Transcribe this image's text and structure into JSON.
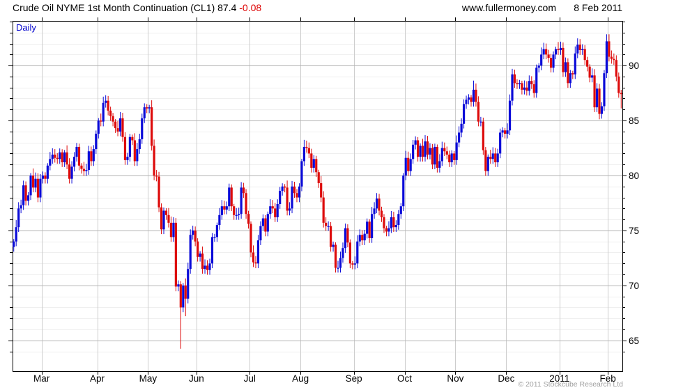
{
  "header": {
    "title": "Crude Oil NYME 1st Month Continuation (CL1) 87.4",
    "change": "-0.08",
    "website": "www.fullermoney.com",
    "date": "8 Feb 2011"
  },
  "plot_label": "Daily",
  "footer": {
    "copyright": "© 2011 Stockcube Research Ltd"
  },
  "chart_data": {
    "type": "candlestick",
    "title": "Crude Oil NYME 1st Month Continuation (CL1)",
    "timeframe": "Daily",
    "last_price": 87.4,
    "change": -0.08,
    "legend_position": "none",
    "grid": "on",
    "y_axis": {
      "side": "right",
      "min": 62.2,
      "max": 94.06,
      "major_ticks": [
        65,
        70,
        75,
        80,
        85,
        90
      ],
      "minor_step": 1
    },
    "x_axis": {
      "tick_labels": [
        "Mar",
        "Apr",
        "May",
        "Jun",
        "Jul",
        "Aug",
        "Sep",
        "Oct",
        "Nov",
        "Dec",
        "2011",
        "Feb"
      ],
      "tick_day_index": [
        12,
        35,
        56,
        76,
        98,
        119,
        141,
        162,
        183,
        204,
        226,
        246
      ]
    },
    "colors": {
      "up": "#0a0ad8",
      "down": "#dd0a0a",
      "grid_minor": "#efefef",
      "grid_major": "#b3b3b3",
      "grid_month": "#cccccc",
      "frame": "#000000"
    },
    "closes": [
      74.0,
      75.3,
      77.0,
      77.3,
      79.1,
      77.7,
      78.2,
      80.0,
      78.9,
      79.7,
      78.0,
      79.7,
      80.0,
      79.7,
      80.9,
      81.5,
      81.9,
      81.6,
      81.5,
      82.1,
      81.2,
      82.1,
      81.0,
      79.7,
      80.8,
      81.7,
      82.6,
      80.9,
      80.6,
      80.4,
      80.5,
      82.2,
      81.3,
      82.4,
      83.8,
      85.0,
      84.9,
      86.6,
      86.8,
      85.9,
      85.4,
      84.9,
      84.3,
      84.0,
      85.2,
      83.5,
      81.4,
      81.7,
      83.5,
      83.2,
      81.3,
      82.4,
      83.3,
      85.2,
      86.2,
      86.1,
      86.2,
      82.7,
      80.0,
      79.9,
      77.1,
      75.1,
      76.8,
      76.4,
      75.7,
      74.4,
      75.7,
      69.9,
      70.1,
      68.0,
      70.0,
      68.8,
      71.5,
      74.6,
      75.0,
      74.0,
      72.6,
      72.9,
      71.5,
      71.8,
      71.4,
      72.0,
      74.4,
      74.4,
      75.5,
      76.4,
      77.2,
      76.9,
      77.2,
      78.9,
      77.2,
      76.4,
      76.4,
      76.5,
      78.9,
      78.4,
      76.5,
      75.6,
      73.0,
      72.1,
      72.0,
      74.1,
      75.4,
      76.1,
      74.9,
      76.5,
      77.2,
      77.0,
      76.2,
      77.4,
      78.6,
      79.0,
      78.9,
      76.8,
      77.0,
      79.0,
      78.4,
      78.0,
      79.0,
      81.3,
      82.6,
      82.5,
      82.0,
      80.7,
      81.5,
      80.3,
      79.3,
      78.0,
      75.7,
      75.4,
      75.4,
      73.5,
      73.7,
      71.6,
      71.6,
      72.5,
      73.4,
      75.2,
      73.9,
      72.0,
      71.9,
      72.0,
      74.0,
      74.6,
      74.1,
      74.7,
      75.8,
      74.3,
      76.5,
      77.0,
      77.9,
      76.8,
      76.2,
      75.2,
      74.9,
      75.2,
      76.2,
      75.3,
      75.5,
      76.5,
      77.2,
      80.0,
      81.6,
      80.4,
      81.5,
      82.8,
      83.2,
      81.7,
      82.7,
      81.7,
      83.1,
      81.9,
      82.5,
      81.0,
      82.6,
      80.7,
      81.3,
      82.5,
      82.2,
      81.9,
      81.2,
      82.0,
      81.4,
      83.0,
      83.9,
      84.7,
      86.5,
      86.9,
      87.1,
      86.7,
      87.8,
      86.7,
      84.9,
      84.9,
      82.3,
      80.4,
      81.7,
      81.5,
      82.0,
      81.2,
      82.0,
      83.9,
      84.1,
      83.8,
      84.1,
      86.8,
      89.2,
      88.4,
      88.3,
      88.4,
      87.8,
      88.0,
      87.7,
      88.6,
      88.3,
      87.5,
      89.8,
      90.0,
      91.0,
      91.5,
      91.0,
      90.7,
      89.8,
      91.0,
      91.5,
      91.4,
      91.6,
      89.4,
      90.3,
      88.4,
      89.3,
      89.2,
      91.1,
      91.9,
      91.4,
      91.5,
      90.5,
      89.9,
      88.9,
      89.1,
      86.2,
      87.9,
      85.6,
      86.3,
      89.3,
      92.2,
      90.8,
      90.6,
      90.5,
      89.0,
      87.5,
      87.4
    ],
    "low_overrides": {
      "69": 64.24,
      "71": 67.2,
      "242": 85.11,
      "251": 86.1
    },
    "high_overrides": {
      "190": 88.63,
      "245": 92.84
    }
  }
}
